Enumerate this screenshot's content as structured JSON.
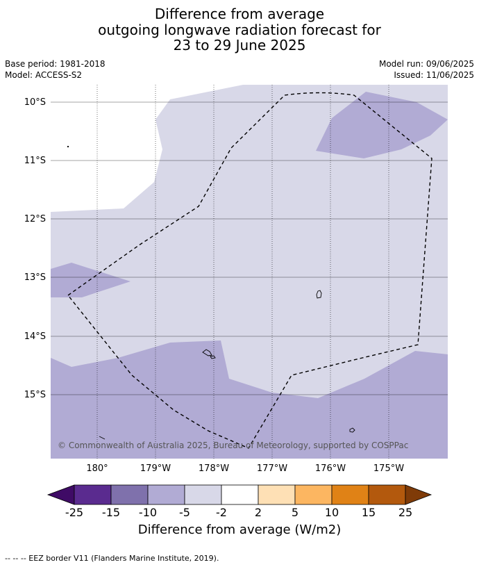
{
  "title": {
    "line1": "Difference from average",
    "line2": "outgoing longwave radiation forecast for",
    "line3": "23 to 29 June 2025"
  },
  "meta": {
    "base_period": "Base period: 1981-2018",
    "model": "Model: ACCESS-S2",
    "model_run": "Model run: 09/06/2025",
    "issued": "Issued: 11/06/2025"
  },
  "map": {
    "latitude_labels": [
      "10°S",
      "11°S",
      "12°S",
      "13°S",
      "14°S",
      "15°S"
    ],
    "longitude_labels": [
      "180°",
      "179°W",
      "178°W",
      "177°W",
      "176°W",
      "175°W"
    ],
    "copyright": "© Commonwealth of Australia 2025, Bureau of Meteorology, supported by COSPPac",
    "colors": {
      "background_anomaly": "#d8d8e8",
      "negative_anomaly": "#b1abd4",
      "eez_border": "#000000"
    }
  },
  "colorbar": {
    "tick_labels": [
      "-25",
      "-15",
      "-10",
      "-5",
      "-2",
      "2",
      "5",
      "10",
      "15",
      "25"
    ],
    "colors": [
      "#3f0b66",
      "#5a2b8f",
      "#7f71ac",
      "#b1abd4",
      "#d8d8e8",
      "#ffffff",
      "#fee0b5",
      "#fcb661",
      "#e08216",
      "#b3590d",
      "#7f3b08"
    ],
    "title": "Difference from average (W/m2)"
  },
  "footnote": "--  --  -- EEZ border V11 (Flanders Marine Institute, 2019)."
}
